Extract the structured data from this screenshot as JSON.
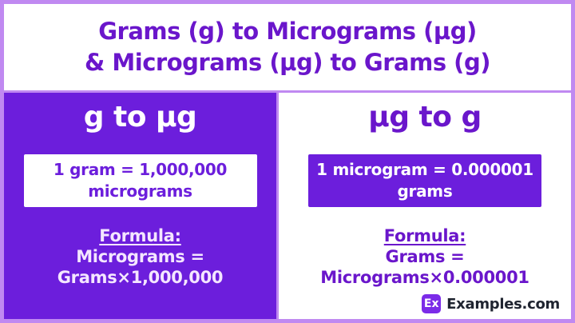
{
  "colors": {
    "border": "#C089F1",
    "panel_purple": "#6C1EDC",
    "title_purple": "#6A16CB",
    "formula_light": "#F4E6FF",
    "logo_purple": "#7B2BE8",
    "logo_text": "#1F2430"
  },
  "header": {
    "title_line1": "Grams (g) to Micrograms (µg)",
    "title_line2": "& Micrograms (µg) to Grams (g)"
  },
  "left_panel": {
    "heading": "g to µg",
    "conversion_line1": "1 gram = 1,000,000",
    "conversion_line2": "micrograms",
    "formula_label": "Formula:",
    "formula_line1": "Micrograms =",
    "formula_line2": "Grams×1,000,000"
  },
  "right_panel": {
    "heading": "µg to g",
    "conversion_line1": "1 microgram = 0.000001",
    "conversion_line2": "grams",
    "formula_label": "Formula:",
    "formula_line1": "Grams =",
    "formula_line2": "Micrograms×0.000001"
  },
  "footer": {
    "logo_badge": "Ex",
    "logo_text": "Examples.com"
  }
}
